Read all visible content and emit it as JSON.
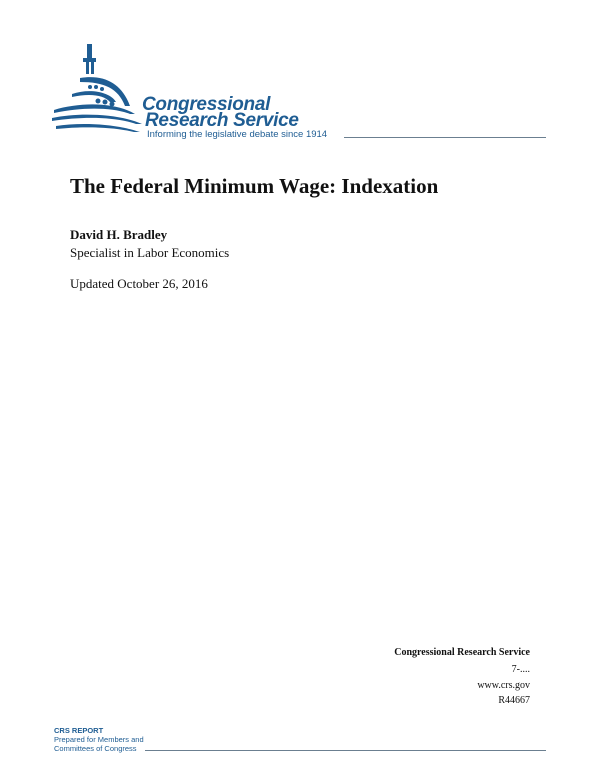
{
  "logo": {
    "line1": "Congressional",
    "line2": "Research Service",
    "tagline": "Informing the legislative debate since 1914",
    "icon": "capitol-dome-icon",
    "color": "#1f5d93"
  },
  "document": {
    "title": "The Federal Minimum Wage: Indexation",
    "author": "David H. Bradley",
    "author_title": "Specialist in Labor Economics",
    "updated": "Updated October 26, 2016"
  },
  "contact": {
    "org": "Congressional Research Service",
    "code": "7-....",
    "website": "www.crs.gov",
    "report_id": "R44667"
  },
  "footer": {
    "label": "CRS REPORT",
    "line2": "Prepared for Members and",
    "line3": "Committees of Congress"
  }
}
